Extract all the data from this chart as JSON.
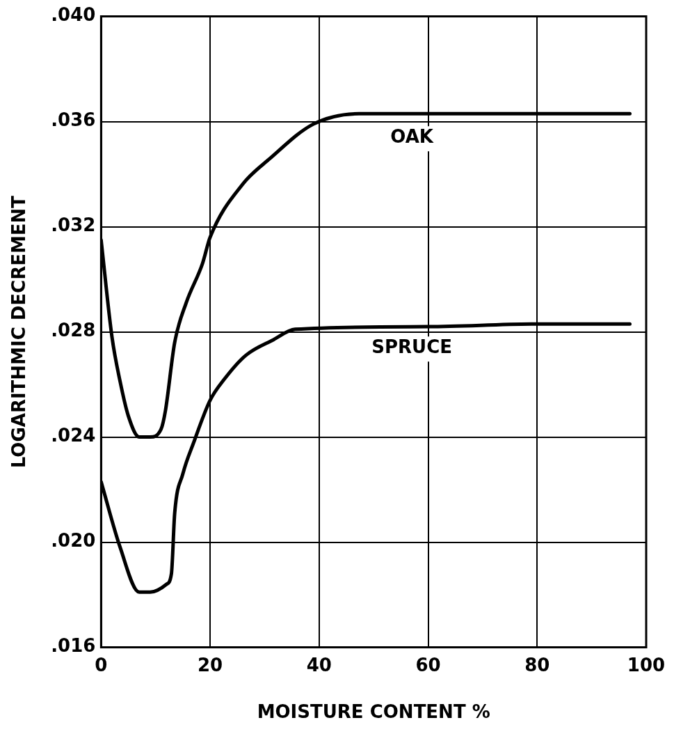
{
  "chart_data": {
    "type": "line",
    "xlabel": "MOISTURE CONTENT %",
    "ylabel": "LOGARITHMIC DECREMENT",
    "xlim": [
      0,
      100
    ],
    "xticks": [
      0,
      20,
      40,
      60,
      80,
      100
    ],
    "ylim": [
      0.016,
      0.04
    ],
    "yticks": [
      {
        "value": 0.016,
        "label": ".016"
      },
      {
        "value": 0.02,
        "label": ".020"
      },
      {
        "value": 0.024,
        "label": ".024"
      },
      {
        "value": 0.028,
        "label": ".028"
      },
      {
        "value": 0.032,
        "label": ".032"
      },
      {
        "value": 0.036,
        "label": ".036"
      },
      {
        "value": 0.04,
        "label": ".040"
      }
    ],
    "grid": true,
    "legend": false,
    "marker": "none",
    "line_style": "solid",
    "series": [
      {
        "name": "OAK",
        "color": "#000000",
        "x": [
          0,
          2,
          3.5,
          5,
          7,
          9,
          11,
          11.8,
          13.5,
          15.6,
          18.6,
          20,
          25.9,
          31,
          38.9,
          47.3,
          60,
          80,
          97
        ],
        "values": [
          0.0315,
          0.0278,
          0.0261,
          0.0248,
          0.024,
          0.024,
          0.0243,
          0.025,
          0.0276,
          0.0291,
          0.0306,
          0.0316,
          0.0336,
          0.0346,
          0.0359,
          0.0363,
          0.0363,
          0.0363,
          0.0363
        ]
      },
      {
        "name": "SPRUCE",
        "color": "#000000",
        "x": [
          0,
          3.5,
          7,
          9,
          12,
          12.9,
          13.5,
          15,
          17,
          20,
          22.6,
          26.5,
          31.6,
          35.6,
          60,
          80,
          97
        ],
        "values": [
          0.0223,
          0.0198,
          0.0181,
          0.0181,
          0.0184,
          0.0188,
          0.0211,
          0.0226,
          0.0238,
          0.0254,
          0.0262,
          0.0271,
          0.0277,
          0.0281,
          0.0282,
          0.0283,
          0.0283
        ]
      }
    ]
  }
}
